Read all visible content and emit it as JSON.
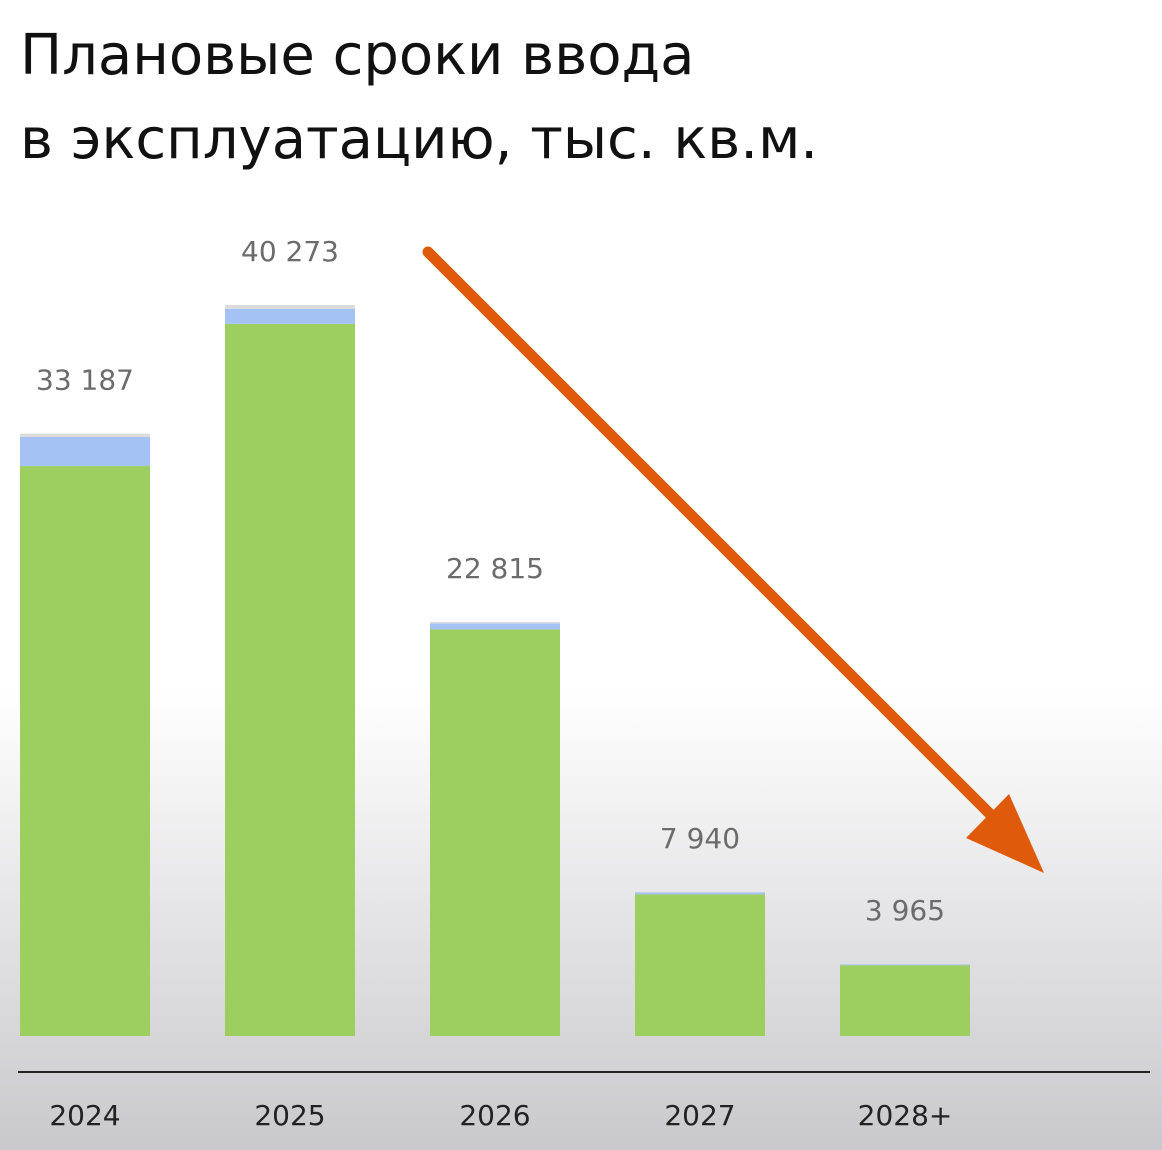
{
  "chart_data": {
    "type": "bar",
    "stacked": true,
    "title": [
      "Плановые сроки ввода",
      "в эксплуатацию, тыс. кв.м."
    ],
    "categories": [
      "2024",
      "2025",
      "2026",
      "2027",
      "2028+"
    ],
    "series": [
      {
        "color": "#9ccf5f",
        "values": [
          31400,
          39230,
          22400,
          7800,
          3900
        ]
      },
      {
        "color": "#a4c2f4",
        "values": [
          1600,
          830,
          330,
          110,
          50
        ]
      },
      {
        "color": "#dcdcdc",
        "values": [
          187,
          213,
          85,
          30,
          15
        ]
      }
    ],
    "totals": {
      "values": [
        33187,
        40273,
        22815,
        7940,
        3965
      ],
      "value_labels": [
        "33 187",
        "40 273",
        "22 815",
        "7 940",
        "3 965"
      ]
    }
  }
}
